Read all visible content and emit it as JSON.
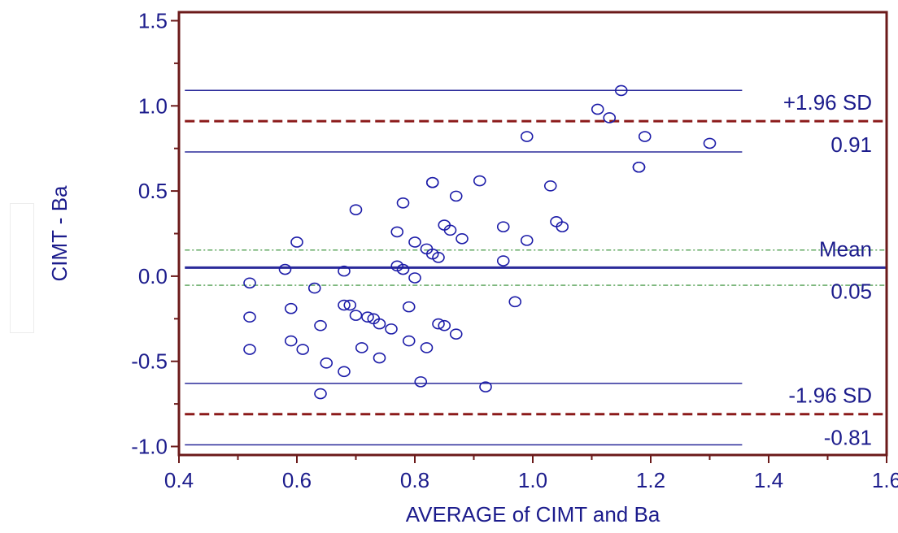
{
  "colors": {
    "frame": "#6b1a1a",
    "text": "#1c1c8c",
    "points": "#1c1ca8",
    "mean": "#2a2a9a",
    "dashed": "#8b1a1a",
    "ci": "#2e8b2e"
  },
  "chart_data": {
    "type": "scatter",
    "title": "",
    "xlabel": "AVERAGE of CIMT and Ba",
    "ylabel": "CIMT - Ba",
    "xlim": [
      0.4,
      1.6
    ],
    "ylim": [
      -1.05,
      1.55
    ],
    "xticks": [
      "0.4",
      "0.6",
      "0.8",
      "1.0",
      "1.2",
      "1.4",
      "1.6"
    ],
    "yticks": [
      "-1.0",
      "-0.5",
      "0.0",
      "0.5",
      "1.0",
      "1.5"
    ],
    "grid": false,
    "mean": 0.05,
    "upper_loa": 0.91,
    "lower_loa": -0.81,
    "labels": {
      "upper_name": "+1.96 SD",
      "upper_value": "0.91",
      "mean_name": "Mean",
      "mean_value": "0.05",
      "lower_name": "-1.96 SD",
      "lower_value": "-0.81"
    },
    "points": [
      [
        0.52,
        -0.04
      ],
      [
        0.52,
        -0.24
      ],
      [
        0.52,
        -0.43
      ],
      [
        0.58,
        0.04
      ],
      [
        0.59,
        -0.19
      ],
      [
        0.59,
        -0.38
      ],
      [
        0.6,
        0.2
      ],
      [
        0.61,
        -0.43
      ],
      [
        0.63,
        -0.07
      ],
      [
        0.64,
        -0.29
      ],
      [
        0.65,
        -0.51
      ],
      [
        0.64,
        -0.69
      ],
      [
        0.68,
        0.03
      ],
      [
        0.68,
        -0.17
      ],
      [
        0.68,
        -0.56
      ],
      [
        0.69,
        -0.17
      ],
      [
        0.7,
        0.39
      ],
      [
        0.7,
        -0.23
      ],
      [
        0.71,
        -0.42
      ],
      [
        0.72,
        -0.24
      ],
      [
        0.73,
        -0.25
      ],
      [
        0.74,
        -0.28
      ],
      [
        0.74,
        -0.48
      ],
      [
        0.76,
        -0.31
      ],
      [
        0.77,
        0.26
      ],
      [
        0.77,
        0.06
      ],
      [
        0.78,
        0.04
      ],
      [
        0.78,
        0.43
      ],
      [
        0.79,
        -0.18
      ],
      [
        0.79,
        -0.38
      ],
      [
        0.8,
        0.2
      ],
      [
        0.8,
        -0.01
      ],
      [
        0.81,
        -0.62
      ],
      [
        0.82,
        0.16
      ],
      [
        0.82,
        -0.42
      ],
      [
        0.83,
        0.55
      ],
      [
        0.83,
        0.55
      ],
      [
        0.83,
        0.13
      ],
      [
        0.84,
        -0.28
      ],
      [
        0.84,
        0.11
      ],
      [
        0.85,
        -0.29
      ],
      [
        0.85,
        0.3
      ],
      [
        0.86,
        0.27
      ],
      [
        0.87,
        0.47
      ],
      [
        0.87,
        -0.34
      ],
      [
        0.88,
        0.22
      ],
      [
        0.91,
        0.56
      ],
      [
        0.92,
        -0.65
      ],
      [
        0.95,
        0.29
      ],
      [
        0.95,
        0.09
      ],
      [
        0.97,
        -0.15
      ],
      [
        0.99,
        0.82
      ],
      [
        0.99,
        0.21
      ],
      [
        1.03,
        0.53
      ],
      [
        1.04,
        0.32
      ],
      [
        1.05,
        0.29
      ],
      [
        1.11,
        0.98
      ],
      [
        1.13,
        0.93
      ],
      [
        1.15,
        1.09
      ],
      [
        1.18,
        0.64
      ],
      [
        1.18,
        0.64
      ],
      [
        1.19,
        0.82
      ],
      [
        1.3,
        0.78
      ]
    ]
  }
}
